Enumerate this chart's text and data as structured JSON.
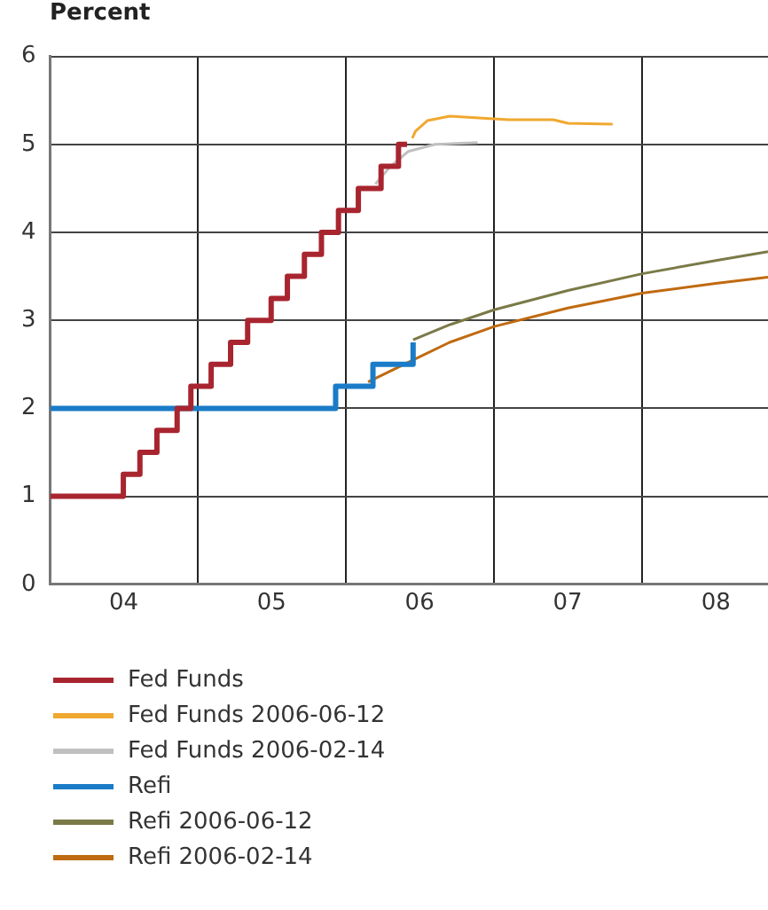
{
  "chart_data": {
    "type": "line",
    "ylabel": "Percent",
    "xlim": [
      "2004-01-01",
      "2008-11-07"
    ],
    "ylim": [
      0,
      6
    ],
    "xticks": [
      {
        "value": "2004-07-01",
        "label": "04"
      },
      {
        "value": "2005-01-01",
        "label": null
      },
      {
        "value": "2005-07-01",
        "label": "05"
      },
      {
        "value": "2006-01-01",
        "label": null
      },
      {
        "value": "2006-07-01",
        "label": "06"
      },
      {
        "value": "2007-01-01",
        "label": null
      },
      {
        "value": "2007-07-01",
        "label": "07"
      },
      {
        "value": "2008-01-01",
        "label": null
      },
      {
        "value": "2008-07-01",
        "label": "08"
      }
    ],
    "yticks": [
      0,
      1,
      2,
      3,
      4,
      5,
      6
    ],
    "grid": true,
    "legend": "bottom",
    "marker": "none",
    "line_style": "solid",
    "series": [
      {
        "name": "Fed Funds",
        "type": "step",
        "color": "#a8252f",
        "x": [
          "2004-01-01",
          "2004-06-30",
          "2004-08-10",
          "2004-09-21",
          "2004-11-10",
          "2004-12-14",
          "2005-02-02",
          "2005-03-22",
          "2005-05-03",
          "2005-06-30",
          "2005-08-09",
          "2005-09-20",
          "2005-11-01",
          "2005-12-13",
          "2006-01-31",
          "2006-03-28",
          "2006-05-10",
          "2006-05-31"
        ],
        "values": [
          1,
          1.25,
          1.5,
          1.75,
          2,
          2.25,
          2.5,
          2.75,
          3,
          3.25,
          3.5,
          3.75,
          4,
          4.25,
          4.5,
          4.75,
          5,
          5
        ]
      },
      {
        "name": "Fed Funds 2006-06-12",
        "type": "line",
        "color": "#f0a830",
        "x": [
          "2006-06-13",
          "2006-06-21",
          "2006-07-20",
          "2006-09-13",
          "2006-11-25",
          "2007-02-06",
          "2007-05-27",
          "2007-07-02",
          "2007-10-20"
        ],
        "values": [
          5.07,
          5.15,
          5.27,
          5.32,
          5.3,
          5.28,
          5.28,
          5.24,
          5.23
        ]
      },
      {
        "name": "Fed Funds 2006-02-14",
        "type": "line",
        "color": "#c0c0c0",
        "x": [
          "2006-03-14",
          "2006-04-20",
          "2006-06-03",
          "2006-08-08",
          "2006-11-21"
        ],
        "values": [
          4.55,
          4.75,
          4.92,
          5,
          5.02
        ]
      },
      {
        "name": "Refi",
        "type": "step",
        "color": "#1a7cc8",
        "x": [
          "2004-01-01",
          "2005-12-06",
          "2006-03-08",
          "2006-06-15",
          "2006-06-15"
        ],
        "values": [
          2,
          2.25,
          2.5,
          2.75,
          2.75
        ]
      },
      {
        "name": "Refi 2006-06-12",
        "type": "line",
        "color": "#7a7a48",
        "x": [
          "2006-06-15",
          "2006-09-13",
          "2007-01-01",
          "2007-07-02",
          "2008-01-01",
          "2008-07-01",
          "2008-11-07"
        ],
        "values": [
          2.78,
          2.95,
          3.12,
          3.34,
          3.53,
          3.68,
          3.78
        ]
      },
      {
        "name": "Refi 2006-02-14",
        "type": "line",
        "color": "#c06a10",
        "x": [
          "2006-02-24",
          "2006-06-15",
          "2006-09-13",
          "2007-01-01",
          "2007-07-02",
          "2008-01-01",
          "2008-07-01",
          "2008-11-07"
        ],
        "values": [
          2.3,
          2.55,
          2.75,
          2.93,
          3.14,
          3.31,
          3.42,
          3.49
        ]
      }
    ]
  }
}
